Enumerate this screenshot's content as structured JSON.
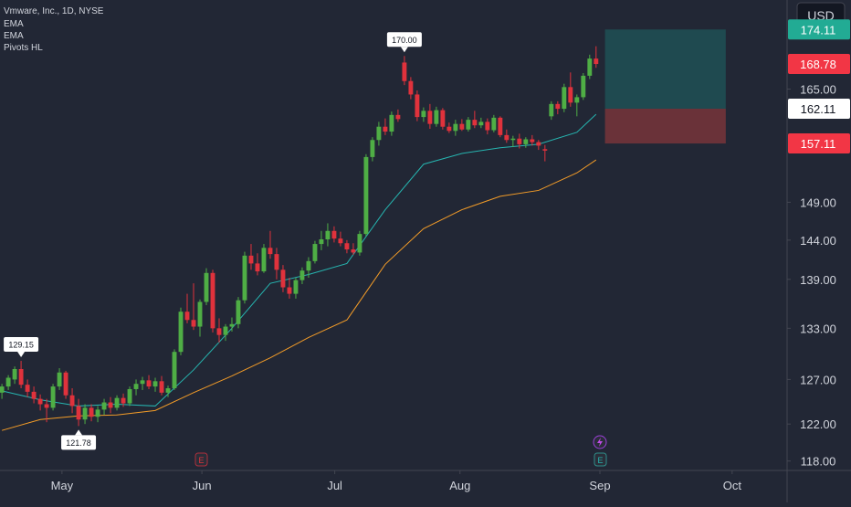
{
  "chart_data": {
    "type": "candlestick",
    "title": "Vmware, Inc., 1D, NYSE",
    "currency": "USD",
    "log_scale": true,
    "up_color": "#4fae45",
    "down_color": "#e0323c",
    "ylim": [
      117,
      178.8
    ],
    "yticks": [
      {
        "value": 118,
        "label": "118.00"
      },
      {
        "value": 122,
        "label": "122.00"
      },
      {
        "value": 127,
        "label": "127.00"
      },
      {
        "value": 133,
        "label": "133.00"
      },
      {
        "value": 139,
        "label": "139.00"
      },
      {
        "value": 144,
        "label": "144.00"
      },
      {
        "value": 149,
        "label": "149.00"
      },
      {
        "value": 165,
        "label": "165.00"
      }
    ],
    "xlim": [
      -0.3,
      122.9
    ],
    "xticks": [
      {
        "value": 9.4,
        "label": "May"
      },
      {
        "value": 31.3,
        "label": "Jun"
      },
      {
        "value": 52.1,
        "label": "Jul"
      },
      {
        "value": 71.7,
        "label": "Aug"
      },
      {
        "value": 93.6,
        "label": "Sep"
      },
      {
        "value": 114.3,
        "label": "Oct"
      }
    ],
    "candles": [
      [
        125.5,
        126.5,
        124.8,
        126.2
      ],
      [
        126.2,
        127.5,
        125.8,
        127.2
      ],
      [
        127,
        128.5,
        126.5,
        128.2
      ],
      [
        128.2,
        129.15,
        126,
        126.4
      ],
      [
        126.4,
        127,
        125,
        125.6
      ],
      [
        125.6,
        126.2,
        124.3,
        124.8
      ],
      [
        124.8,
        125.3,
        123.5,
        124.2
      ],
      [
        124.2,
        124.8,
        122.2,
        123.8
      ],
      [
        123.8,
        126.5,
        123.5,
        126.2
      ],
      [
        126.2,
        128.3,
        125.8,
        127.8
      ],
      [
        127.8,
        128,
        124.8,
        125.2
      ],
      [
        125.2,
        126,
        123.2,
        124
      ],
      [
        124,
        124.8,
        121.78,
        122.5
      ],
      [
        122.5,
        124.2,
        122,
        123.8
      ],
      [
        123.8,
        124.2,
        122.3,
        122.8
      ],
      [
        122.8,
        124,
        122.2,
        123.6
      ],
      [
        123.6,
        124.8,
        123,
        124.4
      ],
      [
        124.4,
        125,
        123.2,
        123.8
      ],
      [
        123.8,
        125.2,
        123.5,
        124.9
      ],
      [
        124.9,
        125.4,
        123.9,
        124.3
      ],
      [
        124.3,
        126.2,
        124,
        125.9
      ],
      [
        125.9,
        127,
        125.2,
        126.5
      ],
      [
        126.5,
        127.3,
        125.8,
        126.9
      ],
      [
        126.9,
        127.5,
        125.9,
        126.2
      ],
      [
        126.2,
        127.2,
        125.6,
        126.8
      ],
      [
        126.8,
        127.4,
        125.2,
        125.5
      ],
      [
        125.5,
        126.3,
        125,
        126
      ],
      [
        126,
        130.5,
        125.8,
        130.2
      ],
      [
        130.2,
        135.5,
        129.8,
        135
      ],
      [
        135,
        137.2,
        133.6,
        134
      ],
      [
        134,
        138.5,
        132.8,
        133.2
      ],
      [
        133.2,
        136.5,
        132,
        136.2
      ],
      [
        136.2,
        140.4,
        135.8,
        139.8
      ],
      [
        139.8,
        140.2,
        132.5,
        133
      ],
      [
        133,
        134.2,
        131.3,
        132.2
      ],
      [
        132.2,
        133.5,
        131.5,
        133.2
      ],
      [
        133.2,
        134.3,
        132.6,
        133.5
      ],
      [
        133.5,
        136.8,
        133,
        136.4
      ],
      [
        136.4,
        142.5,
        136,
        142
      ],
      [
        142,
        143.5,
        140.2,
        141
      ],
      [
        141,
        142.3,
        139.5,
        140
      ],
      [
        140,
        143.5,
        139.8,
        143
      ],
      [
        143,
        145.2,
        141.6,
        142.2
      ],
      [
        142.2,
        143,
        139,
        140.2
      ],
      [
        140.2,
        140.8,
        137.4,
        138
      ],
      [
        138,
        139.2,
        136.6,
        137.2
      ],
      [
        137.2,
        139.2,
        136.6,
        138.9
      ],
      [
        138.9,
        140.5,
        138.4,
        140.1
      ],
      [
        140.1,
        141.8,
        139.2,
        141.3
      ],
      [
        141.3,
        143.9,
        141,
        143.5
      ],
      [
        143.5,
        145.2,
        142.7,
        144.1
      ],
      [
        144.1,
        146.2,
        143.2,
        145.2
      ],
      [
        145.2,
        145.8,
        143.7,
        144.2
      ],
      [
        144.2,
        145.1,
        143.2,
        143.6
      ],
      [
        143.6,
        144,
        142.3,
        142.8
      ],
      [
        142.8,
        143.6,
        142.1,
        142.4
      ],
      [
        142.4,
        145.2,
        142,
        144.8
      ],
      [
        144.8,
        155.6,
        144.5,
        155.2
      ],
      [
        155.2,
        158,
        154.6,
        157.6
      ],
      [
        157.6,
        160.2,
        156.8,
        159.5
      ],
      [
        159.5,
        160.7,
        158.3,
        158.8
      ],
      [
        158.8,
        161.7,
        158.2,
        161.2
      ],
      [
        161.2,
        162,
        160.2,
        160.6
      ],
      [
        169,
        170,
        165.6,
        166.2
      ],
      [
        166.2,
        166.8,
        163.5,
        164.2
      ],
      [
        164.2,
        164.8,
        160.3,
        160.9
      ],
      [
        160.9,
        162.3,
        160.2,
        161.8
      ],
      [
        161.8,
        162.8,
        159.2,
        159.9
      ],
      [
        159.9,
        162.4,
        159.5,
        161.9
      ],
      [
        161.9,
        162.2,
        159.1,
        159.5
      ],
      [
        159.5,
        160.1,
        158.6,
        158.9
      ],
      [
        158.9,
        160.5,
        158.2,
        159.9
      ],
      [
        159.9,
        160.6,
        158.9,
        159.1
      ],
      [
        159.1,
        160.9,
        158.8,
        160.5
      ],
      [
        160.5,
        161.8,
        159.3,
        159.7
      ],
      [
        159.7,
        160.8,
        159.3,
        160.2
      ],
      [
        160.2,
        160.7,
        158.4,
        159
      ],
      [
        159,
        161.2,
        158.7,
        160.8
      ],
      [
        160.8,
        161,
        158,
        158.3
      ],
      [
        158.3,
        159.1,
        157.2,
        157.6
      ],
      [
        157.6,
        158.2,
        156.6,
        157.8
      ],
      [
        157.8,
        158.5,
        156.4,
        157
      ],
      [
        157,
        158,
        156.5,
        157.7
      ],
      [
        157.7,
        158.3,
        156.8,
        157.3
      ],
      [
        157.3,
        157.6,
        156.2,
        156.8
      ],
      [
        156.3,
        156.9,
        154.6,
        156.1
      ],
      [
        161,
        163.2,
        160.5,
        162.8
      ],
      [
        162.8,
        163.2,
        161.3,
        162.1
      ],
      [
        162.1,
        165.8,
        161.6,
        165.3
      ],
      [
        165.3,
        167.5,
        162.4,
        163
      ],
      [
        163,
        164.2,
        161,
        163.8
      ],
      [
        163.8,
        167.4,
        163.4,
        167
      ],
      [
        167,
        170.2,
        166.5,
        169.6
      ],
      [
        169.6,
        171.5,
        168.2,
        168.78
      ]
    ],
    "series": [
      {
        "name": "EMA",
        "color": "#26b5b0",
        "x": [
          0,
          6,
          12,
          18,
          24,
          30,
          36,
          42,
          48,
          54,
          60,
          66,
          72,
          78,
          84,
          90,
          93
        ],
        "values": [
          125.7,
          124.7,
          124,
          124.2,
          124,
          128.1,
          133,
          138.5,
          139.6,
          141,
          148,
          154.2,
          155.7,
          156.5,
          157,
          158.7,
          161.3
        ]
      },
      {
        "name": "EMA",
        "color": "#f39c28",
        "x": [
          0,
          6,
          12,
          18,
          24,
          30,
          36,
          42,
          48,
          54,
          60,
          66,
          72,
          78,
          84,
          90,
          93
        ],
        "values": [
          121.3,
          122.5,
          122.9,
          123,
          123.5,
          125.5,
          127.4,
          129.5,
          131.9,
          134,
          140.9,
          145.5,
          148,
          149.8,
          150.6,
          153,
          154.8
        ]
      }
    ],
    "pivots": {
      "name": "Pivots HL",
      "x": [
        3,
        12,
        63
      ],
      "values": [
        129.15,
        121.78,
        170
      ],
      "value_labels": [
        "129.15",
        "121.78",
        "170.00"
      ]
    },
    "position": {
      "x": [
        94.4,
        113.3
      ],
      "target": 174.11,
      "entry": 162.11,
      "stop": 157.11,
      "profit_color": "#1f4a50",
      "loss_color": "#6a3239"
    },
    "price_labels": {
      "values": [
        174.11,
        168.78,
        162.11,
        157.11
      ],
      "colors": [
        "#22ab94",
        "#f23645",
        "#ffffff",
        "#f23645"
      ]
    }
  }
}
